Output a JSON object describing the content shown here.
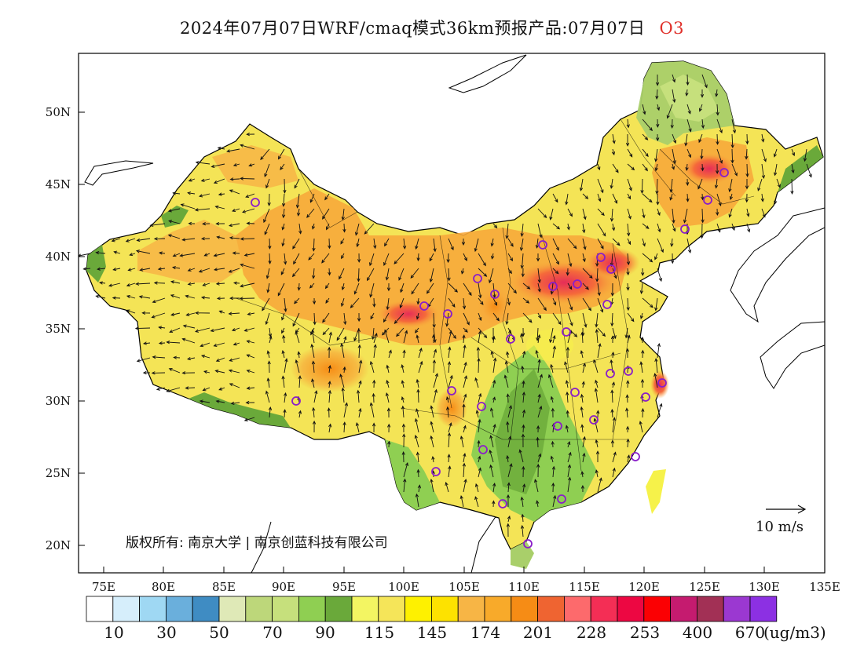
{
  "title": {
    "main": "2024年07月07日WRF/cmaq模式36km预报产品:07月07日",
    "species": "O3"
  },
  "map": {
    "lon_ticks": [
      "75E",
      "80E",
      "85E",
      "90E",
      "95E",
      "100E",
      "105E",
      "110E",
      "115E",
      "120E",
      "125E",
      "130E",
      "135E"
    ],
    "lat_ticks": [
      "50N",
      "45N",
      "40N",
      "35N",
      "30N",
      "25N",
      "20N"
    ],
    "credit": "版权所有: 南京大学 | 南京创蓝科技有限公司",
    "wind_scale_label": "10 m/s",
    "colors": {
      "sea": "#ffffff",
      "coast": "#000000",
      "low": "#8fcf52",
      "mid": "#f6f24a",
      "high": "#f7a93b",
      "peak": "#e62e58"
    },
    "station_marker": "circle"
  },
  "colorbar": {
    "colors": [
      "#ffffff",
      "#d6eefb",
      "#9fd8f3",
      "#6aafdc",
      "#3f8cc3",
      "#dfe9b7",
      "#bdd77a",
      "#c6e07c",
      "#8fcf52",
      "#6aa93a",
      "#f3f562",
      "#f5e559",
      "#fef100",
      "#fde200",
      "#f7b545",
      "#f8aa2a",
      "#f68c15",
      "#ef6431",
      "#fd6a6c",
      "#f42e55",
      "#ed0742",
      "#fb0003",
      "#c51b6f",
      "#a23055",
      "#9b38d1",
      "#8c30e3"
    ],
    "labels": [
      "10",
      "30",
      "50",
      "70",
      "90",
      "115",
      "145",
      "174",
      "201",
      "228",
      "253",
      "400",
      "670"
    ],
    "unit": "(ug/m3)"
  }
}
